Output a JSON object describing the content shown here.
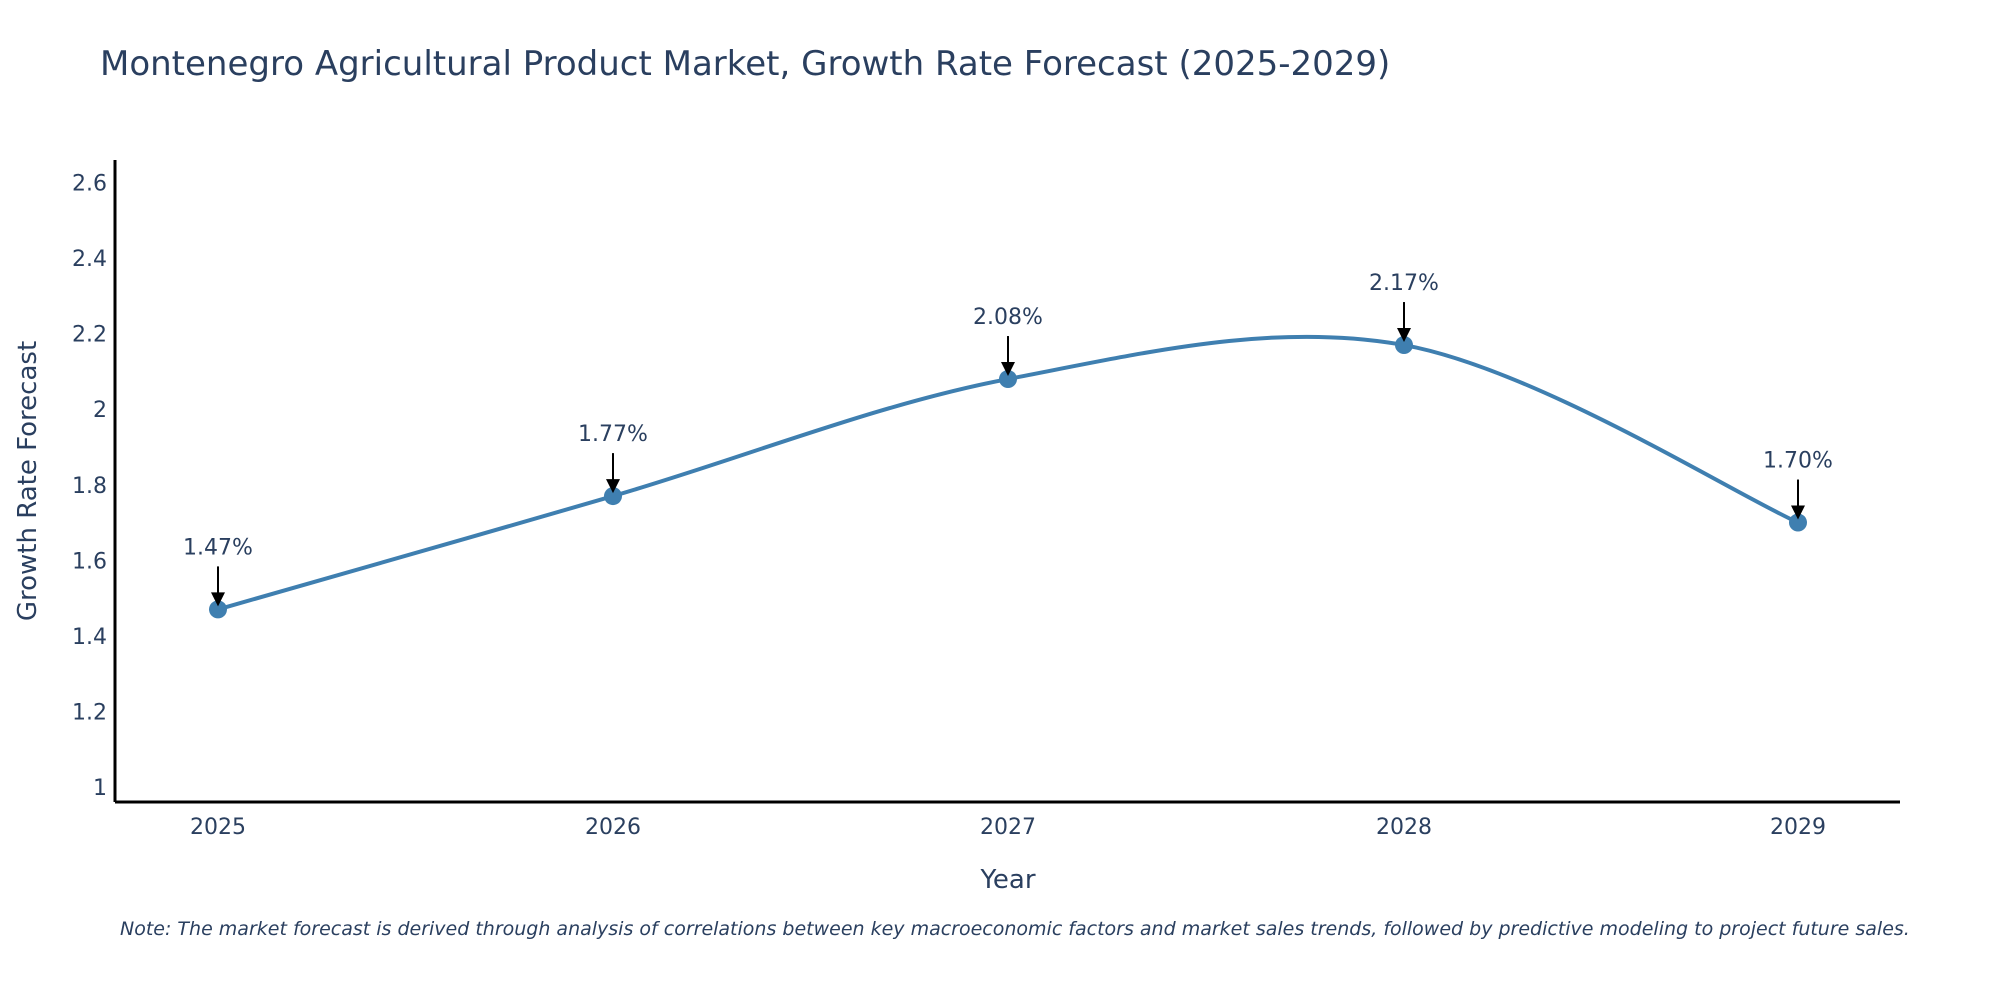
{
  "title": "Montenegro Agricultural Product Market, Growth Rate Forecast (2025-2029)",
  "note": "Note: The market forecast is derived through analysis of correlations between key macroeconomic factors and market sales trends, followed by predictive modeling to project future sales.",
  "colors": {
    "line": "#3f7fb0",
    "marker": "#3f7fb0",
    "text": "#2a3f5f",
    "axis": "#000000"
  },
  "chart_data": {
    "type": "line",
    "title": "Montenegro Agricultural Product Market, Growth Rate Forecast (2025-2029)",
    "xlabel": "Year",
    "ylabel": "Growth Rate Forecast",
    "x": [
      "2025",
      "2026",
      "2027",
      "2028",
      "2029"
    ],
    "series": [
      {
        "name": "Growth Rate Forecast",
        "values": [
          1.47,
          1.77,
          2.08,
          2.17,
          1.7
        ]
      }
    ],
    "labels": [
      "1.47%",
      "1.77%",
      "2.08%",
      "2.17%",
      "1.70%"
    ],
    "yticks": [
      1,
      1.2,
      1.4,
      1.6,
      1.8,
      2,
      2.2,
      2.4,
      2.6
    ],
    "ytick_labels": [
      "1",
      "1.2",
      "1.4",
      "1.6",
      "1.8",
      "2",
      "2.2",
      "2.4",
      "2.6"
    ],
    "ylim": [
      0.96,
      2.66
    ],
    "grid": false,
    "line_shape": "spline"
  }
}
